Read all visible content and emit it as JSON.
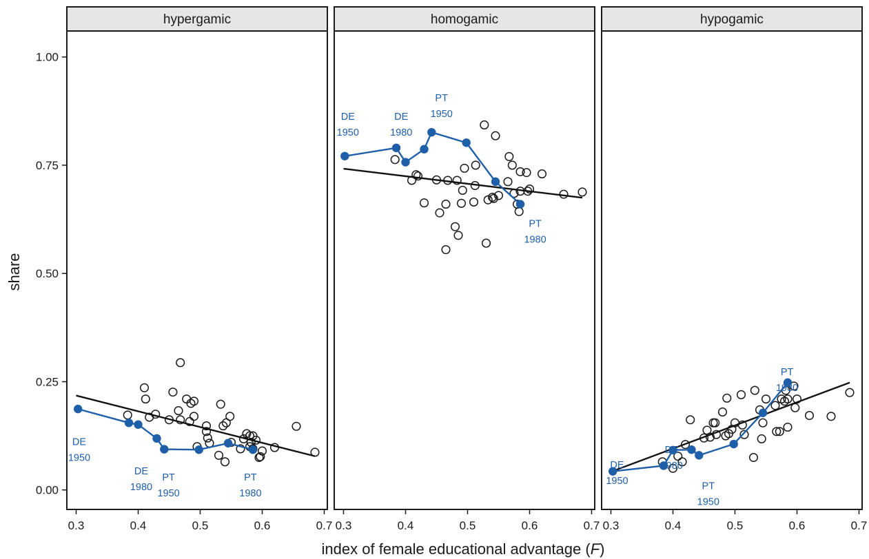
{
  "chart_data": {
    "type": "scatter",
    "xlabel_main": "index of female educational advantage (",
    "xlabel_var": "F",
    "xlabel_close": ")",
    "ylabel": "share",
    "xlim": [
      0.285,
      0.705
    ],
    "ylim": [
      -0.045,
      1.06
    ],
    "x_ticks": [
      0.3,
      0.4,
      0.5,
      0.6,
      0.7
    ],
    "x_tick_labels": [
      "0.3",
      "0.4",
      "0.5",
      "0.6",
      "0.7"
    ],
    "y_ticks": [
      0,
      0.25,
      0.5,
      0.75,
      1.0
    ],
    "y_tick_labels": [
      "0.00",
      "0.25",
      "0.50",
      "0.75",
      "1.00"
    ],
    "colors": {
      "highlight": "#1f5ea8",
      "trend": "#111111",
      "strip": "#e6e6e6",
      "points": "#1a1a1a"
    },
    "panels": [
      {
        "name": "hypergamic",
        "points": [
          [
            0.383,
            0.173
          ],
          [
            0.412,
            0.21
          ],
          [
            0.418,
            0.168
          ],
          [
            0.428,
            0.175
          ],
          [
            0.41,
            0.236
          ],
          [
            0.45,
            0.162
          ],
          [
            0.456,
            0.226
          ],
          [
            0.465,
            0.183
          ],
          [
            0.468,
            0.294
          ],
          [
            0.468,
            0.162
          ],
          [
            0.478,
            0.21
          ],
          [
            0.483,
            0.158
          ],
          [
            0.485,
            0.2
          ],
          [
            0.49,
            0.17
          ],
          [
            0.49,
            0.205
          ],
          [
            0.495,
            0.1
          ],
          [
            0.51,
            0.135
          ],
          [
            0.51,
            0.148
          ],
          [
            0.512,
            0.12
          ],
          [
            0.515,
            0.108
          ],
          [
            0.53,
            0.08
          ],
          [
            0.533,
            0.198
          ],
          [
            0.537,
            0.148
          ],
          [
            0.54,
            0.065
          ],
          [
            0.542,
            0.155
          ],
          [
            0.548,
            0.17
          ],
          [
            0.55,
            0.11
          ],
          [
            0.565,
            0.095
          ],
          [
            0.57,
            0.118
          ],
          [
            0.575,
            0.13
          ],
          [
            0.58,
            0.125
          ],
          [
            0.58,
            0.1
          ],
          [
            0.582,
            0.11
          ],
          [
            0.585,
            0.125
          ],
          [
            0.585,
            0.095
          ],
          [
            0.59,
            0.115
          ],
          [
            0.595,
            0.075
          ],
          [
            0.597,
            0.077
          ],
          [
            0.6,
            0.09
          ],
          [
            0.62,
            0.098
          ],
          [
            0.655,
            0.147
          ],
          [
            0.685,
            0.087
          ]
        ],
        "trend": [
          [
            0.3,
            0.218
          ],
          [
            0.685,
            0.078
          ]
        ],
        "highlight": [
          [
            0.303,
            0.187
          ],
          [
            0.385,
            0.155
          ],
          [
            0.4,
            0.151
          ],
          [
            0.43,
            0.119
          ],
          [
            0.442,
            0.094
          ],
          [
            0.498,
            0.093
          ],
          [
            0.545,
            0.108
          ],
          [
            0.585,
            0.093
          ]
        ],
        "annotations": [
          {
            "lines": [
              "DE",
              "1950"
            ],
            "x": 0.305,
            "y": 0.104
          },
          {
            "lines": [
              "DE",
              "1980"
            ],
            "x": 0.405,
            "y": 0.036
          },
          {
            "lines": [
              "PT",
              "1950"
            ],
            "x": 0.449,
            "y": 0.022
          },
          {
            "lines": [
              "PT",
              "1980"
            ],
            "x": 0.581,
            "y": 0.022
          }
        ]
      },
      {
        "name": "homogamic",
        "points": [
          [
            0.383,
            0.763
          ],
          [
            0.41,
            0.715
          ],
          [
            0.417,
            0.728
          ],
          [
            0.42,
            0.725
          ],
          [
            0.43,
            0.663
          ],
          [
            0.45,
            0.716
          ],
          [
            0.455,
            0.64
          ],
          [
            0.465,
            0.66
          ],
          [
            0.465,
            0.555
          ],
          [
            0.468,
            0.715
          ],
          [
            0.48,
            0.608
          ],
          [
            0.483,
            0.715
          ],
          [
            0.485,
            0.588
          ],
          [
            0.49,
            0.662
          ],
          [
            0.492,
            0.692
          ],
          [
            0.495,
            0.743
          ],
          [
            0.51,
            0.665
          ],
          [
            0.512,
            0.703
          ],
          [
            0.513,
            0.75
          ],
          [
            0.527,
            0.843
          ],
          [
            0.53,
            0.57
          ],
          [
            0.533,
            0.67
          ],
          [
            0.54,
            0.676
          ],
          [
            0.542,
            0.673
          ],
          [
            0.545,
            0.818
          ],
          [
            0.55,
            0.68
          ],
          [
            0.565,
            0.712
          ],
          [
            0.567,
            0.77
          ],
          [
            0.572,
            0.75
          ],
          [
            0.575,
            0.685
          ],
          [
            0.58,
            0.66
          ],
          [
            0.583,
            0.643
          ],
          [
            0.585,
            0.735
          ],
          [
            0.585,
            0.69
          ],
          [
            0.595,
            0.733
          ],
          [
            0.597,
            0.69
          ],
          [
            0.6,
            0.695
          ],
          [
            0.62,
            0.73
          ],
          [
            0.655,
            0.683
          ],
          [
            0.685,
            0.688
          ]
        ],
        "trend": [
          [
            0.3,
            0.742
          ],
          [
            0.685,
            0.675
          ]
        ],
        "highlight": [
          [
            0.302,
            0.771
          ],
          [
            0.385,
            0.79
          ],
          [
            0.4,
            0.757
          ],
          [
            0.43,
            0.787
          ],
          [
            0.442,
            0.826
          ],
          [
            0.498,
            0.802
          ],
          [
            0.545,
            0.712
          ],
          [
            0.585,
            0.66
          ]
        ],
        "annotations": [
          {
            "lines": [
              "DE",
              "1950"
            ],
            "x": 0.307,
            "y": 0.855
          },
          {
            "lines": [
              "DE",
              "1980"
            ],
            "x": 0.393,
            "y": 0.855
          },
          {
            "lines": [
              "PT",
              "1950"
            ],
            "x": 0.458,
            "y": 0.898
          },
          {
            "lines": [
              "PT",
              "1980"
            ],
            "x": 0.609,
            "y": 0.608
          }
        ]
      },
      {
        "name": "hypogamic",
        "points": [
          [
            0.383,
            0.065
          ],
          [
            0.4,
            0.05
          ],
          [
            0.408,
            0.078
          ],
          [
            0.415,
            0.065
          ],
          [
            0.42,
            0.105
          ],
          [
            0.428,
            0.162
          ],
          [
            0.45,
            0.12
          ],
          [
            0.455,
            0.138
          ],
          [
            0.46,
            0.122
          ],
          [
            0.465,
            0.155
          ],
          [
            0.468,
            0.155
          ],
          [
            0.47,
            0.128
          ],
          [
            0.48,
            0.18
          ],
          [
            0.485,
            0.125
          ],
          [
            0.487,
            0.212
          ],
          [
            0.49,
            0.13
          ],
          [
            0.495,
            0.14
          ],
          [
            0.5,
            0.155
          ],
          [
            0.51,
            0.22
          ],
          [
            0.512,
            0.15
          ],
          [
            0.515,
            0.128
          ],
          [
            0.53,
            0.075
          ],
          [
            0.532,
            0.23
          ],
          [
            0.54,
            0.185
          ],
          [
            0.543,
            0.118
          ],
          [
            0.545,
            0.155
          ],
          [
            0.55,
            0.21
          ],
          [
            0.565,
            0.195
          ],
          [
            0.567,
            0.135
          ],
          [
            0.572,
            0.135
          ],
          [
            0.575,
            0.21
          ],
          [
            0.58,
            0.205
          ],
          [
            0.582,
            0.23
          ],
          [
            0.585,
            0.21
          ],
          [
            0.585,
            0.145
          ],
          [
            0.595,
            0.24
          ],
          [
            0.597,
            0.19
          ],
          [
            0.6,
            0.21
          ],
          [
            0.62,
            0.172
          ],
          [
            0.655,
            0.17
          ],
          [
            0.685,
            0.225
          ]
        ],
        "trend": [
          [
            0.3,
            0.042
          ],
          [
            0.685,
            0.248
          ]
        ],
        "highlight": [
          [
            0.303,
            0.043
          ],
          [
            0.385,
            0.056
          ],
          [
            0.4,
            0.092
          ],
          [
            0.43,
            0.093
          ],
          [
            0.442,
            0.08
          ],
          [
            0.498,
            0.106
          ],
          [
            0.545,
            0.178
          ],
          [
            0.585,
            0.248
          ]
        ],
        "annotations": [
          {
            "lines": [
              "DE",
              "1950"
            ],
            "x": 0.31,
            "y": 0.05
          },
          {
            "lines": [
              "DE",
              "1980"
            ],
            "x": 0.398,
            "y": 0.085
          },
          {
            "lines": [
              "PT",
              "1950"
            ],
            "x": 0.457,
            "y": 0.002
          },
          {
            "lines": [
              "PT",
              "1980"
            ],
            "x": 0.584,
            "y": 0.265
          }
        ]
      }
    ]
  }
}
